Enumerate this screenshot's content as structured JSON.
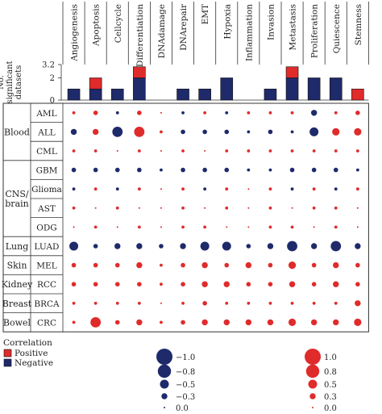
{
  "chart_data": {
    "type": "bubble-matrix",
    "processes": [
      "Angiogenesis",
      "Apoptosis",
      "Cellcycle",
      "Differentiation",
      "DNAdamage",
      "DNArepair",
      "EMT",
      "Hypoxia",
      "Inflammation",
      "Invasion",
      "Metastasis",
      "Proliferation",
      "Quiescence",
      "Stemness"
    ],
    "bar_ylabel": "No. significant datasets",
    "bar_yticks": [
      "0",
      "2",
      "3.2"
    ],
    "bar_ylim": [
      0,
      3.2
    ],
    "bars": {
      "negative": [
        1,
        1,
        1,
        2,
        0,
        1,
        1,
        2,
        0,
        1,
        2,
        2,
        2,
        0
      ],
      "positive": [
        0,
        1,
        0,
        1,
        0,
        0,
        0,
        0,
        0,
        0,
        1,
        0,
        0,
        1
      ]
    },
    "groups": [
      {
        "name": "Blood",
        "rows": [
          "AML",
          "ALL",
          "CML"
        ]
      },
      {
        "name": "CNS/\nbrain",
        "rows": [
          "GBM",
          "Glioma",
          "AST",
          "ODG"
        ]
      },
      {
        "name": "Lung",
        "rows": [
          "LUAD"
        ]
      },
      {
        "name": "Skin",
        "rows": [
          "MEL"
        ]
      },
      {
        "name": "Kidney",
        "rows": [
          "RCC"
        ]
      },
      {
        "name": "Breast",
        "rows": [
          "BRCA"
        ]
      },
      {
        "name": "Bowel",
        "rows": [
          "CRC"
        ]
      }
    ],
    "correlations": {
      "AML": [
        0.1,
        0.2,
        -0.1,
        0.2,
        0.0,
        -0.1,
        0.1,
        -0.1,
        0.1,
        0.1,
        0.1,
        -0.3,
        0.1,
        0.2
      ],
      "ALL": [
        -0.3,
        0.3,
        -0.6,
        0.6,
        0.1,
        -0.2,
        -0.2,
        -0.2,
        -0.1,
        -0.2,
        -0.1,
        -0.5,
        0.4,
        0.4
      ],
      "CML": [
        0.1,
        0.1,
        0.0,
        0.1,
        0.0,
        0.1,
        0.0,
        0.1,
        0.1,
        0.1,
        0.1,
        0.1,
        0.1,
        0.1
      ],
      "GBM": [
        -0.2,
        -0.2,
        -0.2,
        -0.2,
        -0.1,
        -0.2,
        -0.2,
        -0.2,
        -0.1,
        -0.1,
        -0.2,
        -0.2,
        -0.2,
        -0.1
      ],
      "Glioma": [
        -0.1,
        0.1,
        -0.1,
        0.1,
        0.0,
        0.1,
        -0.1,
        0.1,
        0.0,
        0.1,
        -0.1,
        0.1,
        -0.1,
        0.1
      ],
      "AST": [
        0.1,
        0.0,
        0.1,
        0.0,
        0.0,
        0.1,
        0.0,
        0.1,
        0.0,
        0.1,
        0.0,
        0.1,
        0.1,
        0.0
      ],
      "ODG": [
        0.0,
        0.1,
        0.0,
        0.1,
        0.0,
        0.1,
        0.1,
        0.0,
        0.0,
        0.1,
        0.1,
        0.0,
        0.1,
        0.0
      ],
      "LUAD": [
        -0.5,
        -0.2,
        -0.3,
        -0.3,
        -0.2,
        -0.3,
        -0.5,
        -0.5,
        -0.2,
        -0.3,
        -0.6,
        -0.3,
        -0.6,
        -0.3
      ],
      "MEL": [
        0.2,
        0.2,
        0.2,
        0.3,
        0.1,
        0.2,
        0.3,
        0.2,
        0.3,
        0.2,
        0.4,
        0.2,
        0.3,
        0.2
      ],
      "RCC": [
        0.2,
        0.2,
        0.2,
        0.2,
        0.1,
        0.2,
        0.3,
        0.3,
        0.2,
        0.2,
        0.3,
        0.2,
        0.3,
        0.2
      ],
      "BRCA": [
        0.1,
        0.1,
        0.1,
        0.1,
        0.0,
        0.1,
        0.2,
        0.1,
        0.1,
        0.1,
        0.1,
        0.1,
        0.1,
        0.3
      ],
      "CRC": [
        0.1,
        0.6,
        0.2,
        0.3,
        0.1,
        0.2,
        0.3,
        0.3,
        0.3,
        0.3,
        0.4,
        0.3,
        0.3,
        0.4
      ]
    },
    "legend": {
      "title": "Correlation",
      "positive_label": "Positive",
      "negative_label": "Negative",
      "negative_sizes": [
        "−1.0",
        "−0.8",
        "−0.5",
        "−0.3",
        "0.0"
      ],
      "positive_sizes": [
        "1.0",
        "0.8",
        "0.5",
        "0.3",
        "0.0"
      ]
    },
    "colors": {
      "positive": "#e02b2b",
      "negative": "#1f2a6b",
      "bar_negative": "#1f2a6b",
      "bar_positive": "#e02b2b"
    }
  }
}
